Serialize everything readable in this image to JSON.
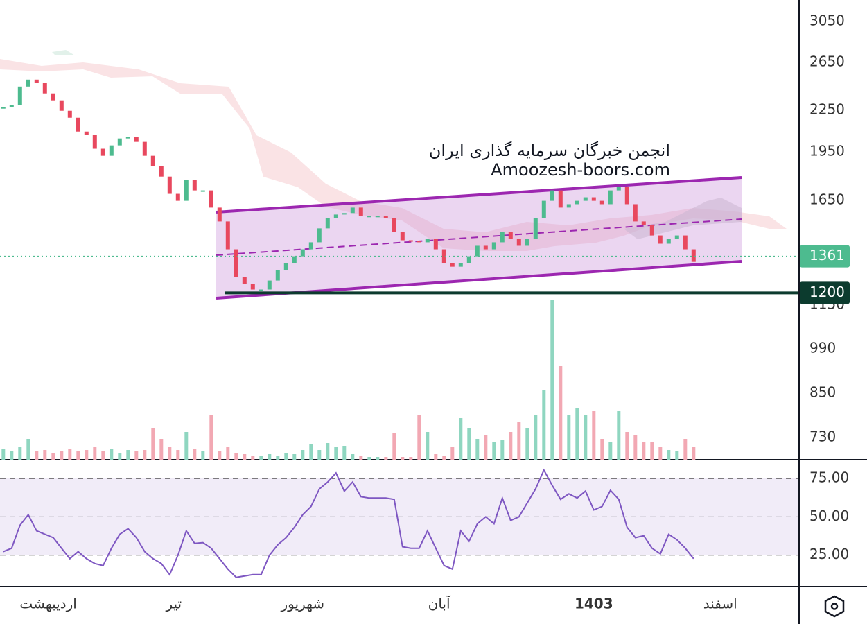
{
  "chart_data": [
    {
      "type": "candlestick",
      "annotation": [
        "انجمن خبرگان سرمایه گذاری ایران",
        "Amoozesh-boors.com"
      ],
      "values": [
        2272,
        2288,
        2440,
        2499,
        2469,
        2383,
        2327,
        2245,
        2192,
        2090,
        2065,
        1970,
        1923,
        1993,
        2041,
        2051,
        2017,
        1923,
        1856,
        1790,
        1687,
        1647,
        1769,
        1707,
        1707,
        1609,
        1534,
        1394,
        1267,
        1238,
        1214,
        1214,
        1252,
        1298,
        1329,
        1361,
        1394,
        1428,
        1498,
        1552,
        1571,
        1579,
        1609,
        1564,
        1564,
        1564,
        1552,
        1480,
        1438,
        1435,
        1428,
        1445,
        1394,
        1329,
        1313,
        1329,
        1361,
        1411,
        1394,
        1428,
        1480,
        1445,
        1411,
        1445,
        1552,
        1647,
        1707,
        1609,
        1628,
        1647,
        1667,
        1647,
        1628,
        1707,
        1728,
        1628,
        1534,
        1516,
        1462,
        1421,
        1445,
        1462,
        1394,
        1335
      ],
      "volume": [
        15,
        12,
        18,
        30,
        12,
        14,
        10,
        12,
        16,
        12,
        14,
        18,
        12,
        16,
        10,
        14,
        12,
        14,
        45,
        30,
        18,
        14,
        40,
        16,
        12,
        65,
        12,
        18,
        10,
        8,
        6,
        6,
        8,
        6,
        10,
        8,
        14,
        22,
        14,
        24,
        18,
        20,
        8,
        6,
        4,
        4,
        4,
        38,
        4,
        4,
        65,
        40,
        8,
        6,
        18,
        60,
        45,
        30,
        35,
        25,
        28,
        40,
        55,
        45,
        65,
        100,
        230,
        135,
        65,
        75,
        65,
        70,
        30,
        25,
        70,
        40,
        35,
        25,
        25,
        18,
        14,
        12,
        30,
        18
      ],
      "up_color": "#4dbb8f",
      "down_color": "#e8485e",
      "log_scale": true,
      "ylim": [
        676,
        3286
      ],
      "yticks": [
        3050,
        2650,
        2250,
        1950,
        1650,
        1150,
        990,
        850,
        730
      ],
      "levels": [
        {
          "value": 1361,
          "color": "#4dbb8f"
        },
        {
          "value": 1200,
          "color": "#0c3b2e"
        }
      ],
      "xlim": [
        -0.4,
        95.6
      ],
      "xticks": [
        {
          "value": 5.4,
          "label": "اردیبهشت"
        },
        {
          "value": 20.5,
          "label": "تیر"
        },
        {
          "value": 36,
          "label": "شهریور"
        },
        {
          "value": 52.4,
          "label": "آبان"
        },
        {
          "value": 71,
          "label": "1403"
        },
        {
          "value": 86.2,
          "label": "اسفند"
        }
      ]
    },
    {
      "type": "line",
      "values": [
        27.3,
        29.5,
        44.5,
        51.4,
        40.9,
        38.6,
        36.4,
        29.5,
        22.7,
        27.3,
        22.7,
        19.5,
        18.2,
        29.5,
        38.6,
        42.3,
        36.4,
        27.3,
        22.7,
        19.5,
        12.3,
        25.0,
        40.9,
        32.7,
        33.2,
        29.5,
        22.7,
        15.9,
        10.5,
        11.4,
        12.3,
        12.3,
        25.0,
        31.8,
        36.4,
        43.2,
        51.4,
        56.8,
        68.2,
        72.7,
        78.6,
        66.8,
        72.7,
        63.2,
        62.3,
        62.3,
        62.3,
        61.4,
        30.5,
        29.5,
        29.5,
        40.9,
        29.5,
        18.2,
        15.9,
        40.9,
        34.1,
        45.5,
        50.0,
        45.5,
        62.3,
        47.7,
        50.0,
        59.1,
        68.2,
        80.5,
        70.5,
        61.4,
        65.0,
        62.3,
        66.8,
        54.5,
        56.8,
        67.3,
        61.4,
        43.2,
        36.4,
        37.7,
        29.5,
        25.9,
        38.6,
        35.0,
        29.5,
        22.7
      ],
      "color": "#7e57c2",
      "ylim": [
        4.5,
        87.3
      ],
      "yticks": [
        {
          "value": 75,
          "label": "75.00"
        },
        {
          "value": 50,
          "label": "50.00"
        },
        {
          "value": 25,
          "label": "25.00"
        }
      ]
    }
  ]
}
